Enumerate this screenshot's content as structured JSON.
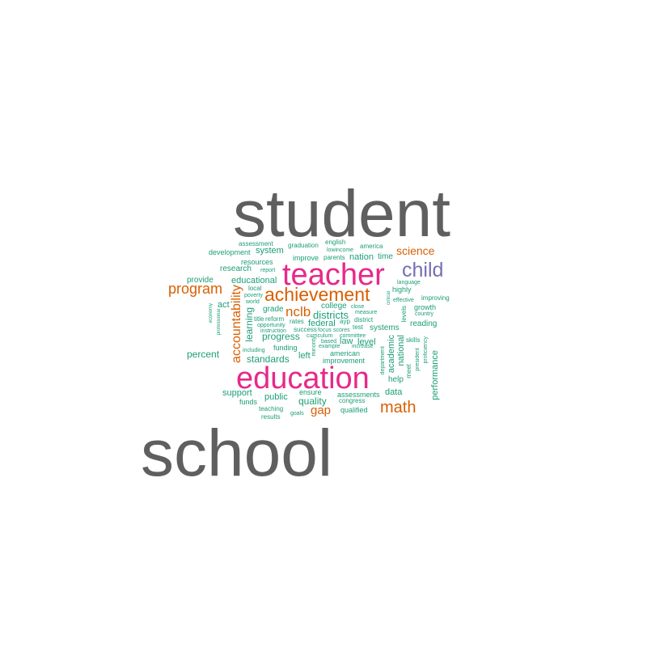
{
  "palette": {
    "grey": "#5f5f5f",
    "pink": "#e7298a",
    "purple": "#7570b3",
    "orange": "#d95f02",
    "green": "#1b9e77"
  },
  "words": [
    {
      "t": "student",
      "c": "grey"
    },
    {
      "t": "school",
      "c": "grey"
    },
    {
      "t": "education",
      "c": "pink"
    },
    {
      "t": "teacher",
      "c": "pink"
    },
    {
      "t": "child",
      "c": "purple"
    },
    {
      "t": "achievement",
      "c": "orange"
    },
    {
      "t": "program",
      "c": "orange"
    },
    {
      "t": "math",
      "c": "orange"
    },
    {
      "t": "science",
      "c": "orange"
    },
    {
      "t": "nclb",
      "c": "orange"
    },
    {
      "t": "accountability",
      "c": "orange"
    },
    {
      "t": "gap",
      "c": "orange"
    },
    {
      "t": "assessment",
      "c": "green"
    },
    {
      "t": "graduation",
      "c": "green"
    },
    {
      "t": "english",
      "c": "green"
    },
    {
      "t": "america",
      "c": "green"
    },
    {
      "t": "development",
      "c": "green"
    },
    {
      "t": "system",
      "c": "green"
    },
    {
      "t": "lowincome",
      "c": "green"
    },
    {
      "t": "resources",
      "c": "green"
    },
    {
      "t": "improve",
      "c": "green"
    },
    {
      "t": "parents",
      "c": "green"
    },
    {
      "t": "nation",
      "c": "green"
    },
    {
      "t": "time",
      "c": "green"
    },
    {
      "t": "research",
      "c": "green"
    },
    {
      "t": "report",
      "c": "green"
    },
    {
      "t": "provide",
      "c": "green"
    },
    {
      "t": "educational",
      "c": "green"
    },
    {
      "t": "language",
      "c": "green"
    },
    {
      "t": "local",
      "c": "green"
    },
    {
      "t": "highly",
      "c": "green"
    },
    {
      "t": "poverty",
      "c": "green"
    },
    {
      "t": "world",
      "c": "green"
    },
    {
      "t": "act",
      "c": "green"
    },
    {
      "t": "effective",
      "c": "green"
    },
    {
      "t": "improving",
      "c": "green"
    },
    {
      "t": "college",
      "c": "green"
    },
    {
      "t": "close",
      "c": "green"
    },
    {
      "t": "growth",
      "c": "green"
    },
    {
      "t": "economy",
      "c": "green"
    },
    {
      "t": "grade",
      "c": "green"
    },
    {
      "t": "districts",
      "c": "green"
    },
    {
      "t": "measure",
      "c": "green"
    },
    {
      "t": "country",
      "c": "green"
    },
    {
      "t": "professional",
      "c": "green"
    },
    {
      "t": "learning",
      "c": "green"
    },
    {
      "t": "title",
      "c": "green"
    },
    {
      "t": "reform",
      "c": "green"
    },
    {
      "t": "rates",
      "c": "green"
    },
    {
      "t": "ayp",
      "c": "green"
    },
    {
      "t": "district",
      "c": "green"
    },
    {
      "t": "critical",
      "c": "green"
    },
    {
      "t": "levels",
      "c": "green"
    },
    {
      "t": "federal",
      "c": "green"
    },
    {
      "t": "reading",
      "c": "green"
    },
    {
      "t": "opportunity",
      "c": "green"
    },
    {
      "t": "instruction",
      "c": "green"
    },
    {
      "t": "success",
      "c": "green"
    },
    {
      "t": "focus",
      "c": "green"
    },
    {
      "t": "scores",
      "c": "green"
    },
    {
      "t": "test",
      "c": "green"
    },
    {
      "t": "systems",
      "c": "green"
    },
    {
      "t": "progress",
      "c": "green"
    },
    {
      "t": "curriculum",
      "c": "green"
    },
    {
      "t": "committee",
      "c": "green"
    },
    {
      "t": "skills",
      "c": "green"
    },
    {
      "t": "based",
      "c": "green"
    },
    {
      "t": "law",
      "c": "green"
    },
    {
      "t": "level",
      "c": "green"
    },
    {
      "t": "minority",
      "c": "green"
    },
    {
      "t": "example",
      "c": "green"
    },
    {
      "t": "increase",
      "c": "green"
    },
    {
      "t": "including",
      "c": "green"
    },
    {
      "t": "funding",
      "c": "green"
    },
    {
      "t": "percent",
      "c": "green"
    },
    {
      "t": "left",
      "c": "green"
    },
    {
      "t": "academic",
      "c": "green"
    },
    {
      "t": "national",
      "c": "green"
    },
    {
      "t": "department",
      "c": "green"
    },
    {
      "t": "president",
      "c": "green"
    },
    {
      "t": "proficiency",
      "c": "green"
    },
    {
      "t": "standards",
      "c": "green"
    },
    {
      "t": "american",
      "c": "green"
    },
    {
      "t": "improvement",
      "c": "green"
    },
    {
      "t": "help",
      "c": "green"
    },
    {
      "t": "meet",
      "c": "green"
    },
    {
      "t": "performance",
      "c": "green"
    },
    {
      "t": "support",
      "c": "green"
    },
    {
      "t": "ensure",
      "c": "green"
    },
    {
      "t": "data",
      "c": "green"
    },
    {
      "t": "public",
      "c": "green"
    },
    {
      "t": "assessments",
      "c": "green"
    },
    {
      "t": "funds",
      "c": "green"
    },
    {
      "t": "quality",
      "c": "green"
    },
    {
      "t": "congress",
      "c": "green"
    },
    {
      "t": "teaching",
      "c": "green"
    },
    {
      "t": "goals",
      "c": "green"
    },
    {
      "t": "qualified",
      "c": "green"
    },
    {
      "t": "results",
      "c": "green"
    }
  ]
}
